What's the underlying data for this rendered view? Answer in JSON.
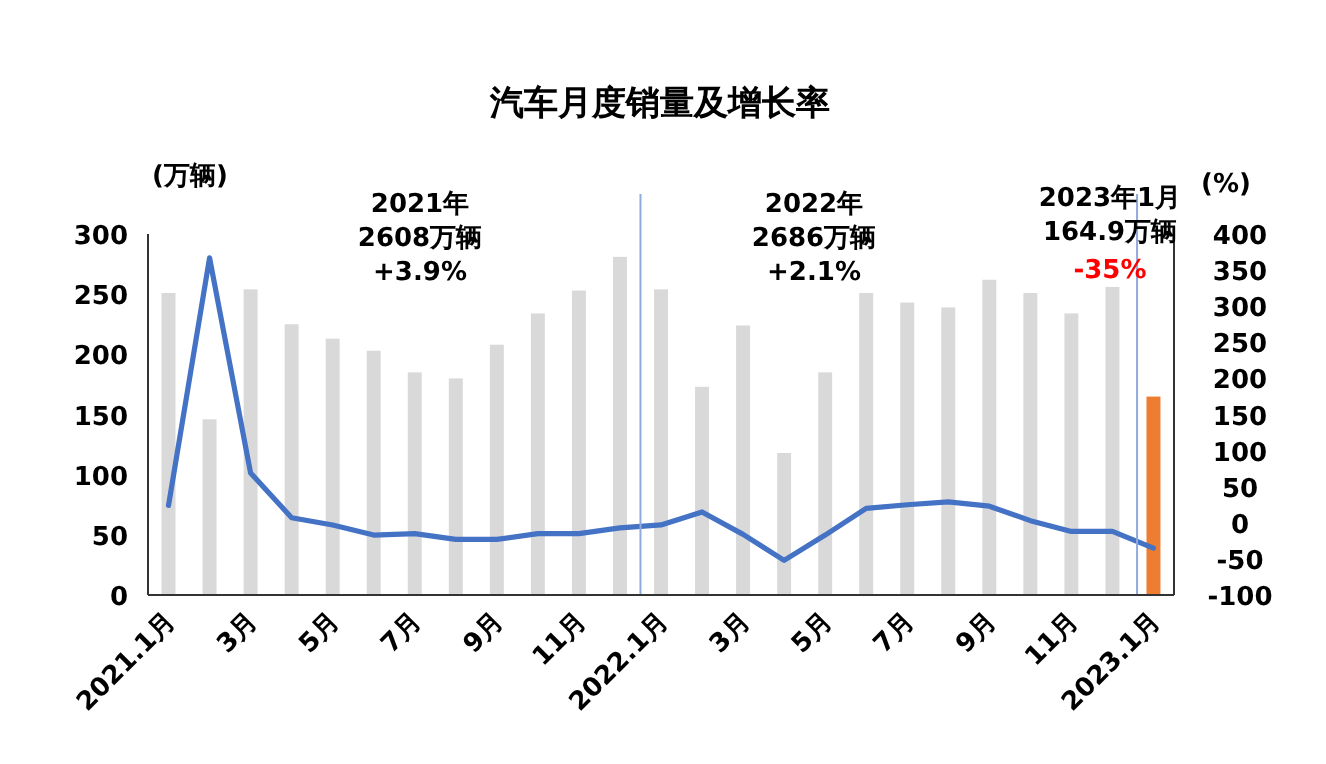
{
  "chart_data": {
    "type": "bar",
    "title": "汽车月度销量及增长率",
    "ylabel": "(万辆)",
    "y2label": "(%)",
    "categories": [
      "2021.1月",
      null,
      "3月",
      null,
      "5月",
      null,
      "7月",
      null,
      "9月",
      null,
      "11月",
      null,
      "2022.1月",
      null,
      "3月",
      null,
      "5月",
      null,
      "7月",
      null,
      "9月",
      null,
      "11月",
      null,
      "2023.1月"
    ],
    "ylim": [
      0,
      300
    ],
    "yticks": [
      0,
      50,
      100,
      150,
      200,
      250,
      300
    ],
    "y2lim": [
      -100,
      400
    ],
    "y2ticks": [
      -100,
      -50,
      0,
      50,
      100,
      150,
      200,
      250,
      300,
      350,
      400
    ],
    "grid": false,
    "series": [
      {
        "colors": [
          "#d9d9d9",
          "#d9d9d9",
          "#d9d9d9",
          "#d9d9d9",
          "#d9d9d9",
          "#d9d9d9",
          "#d9d9d9",
          "#d9d9d9",
          "#d9d9d9",
          "#d9d9d9",
          "#d9d9d9",
          "#d9d9d9",
          "#d9d9d9",
          "#d9d9d9",
          "#d9d9d9",
          "#d9d9d9",
          "#d9d9d9",
          "#d9d9d9",
          "#d9d9d9",
          "#d9d9d9",
          "#d9d9d9",
          "#d9d9d9",
          "#d9d9d9",
          "#d9d9d9",
          "#ed7d31"
        ],
        "values": [
          251,
          146,
          254,
          225,
          213,
          203,
          185,
          180,
          208,
          234,
          253,
          281,
          254,
          173,
          224,
          118,
          185,
          251,
          243,
          239,
          262,
          251,
          234,
          256,
          164.9
        ]
      },
      {
        "type": "line",
        "axis": "y2",
        "color": "#4472c4",
        "marker": "none",
        "values": [
          24,
          367,
          69,
          7,
          -3,
          -17,
          -15,
          -23,
          -23,
          -15,
          -15,
          -7,
          -3,
          15,
          -16,
          -52,
          -17,
          20,
          25,
          29,
          23,
          3,
          -12,
          -12,
          -35
        ]
      }
    ],
    "annotations": [
      "2021年\n2608万辆\n+3.9%",
      "2022年\n2686万辆\n+2.1%",
      "2023年1月\n164.9万辆",
      "-35%"
    ]
  }
}
